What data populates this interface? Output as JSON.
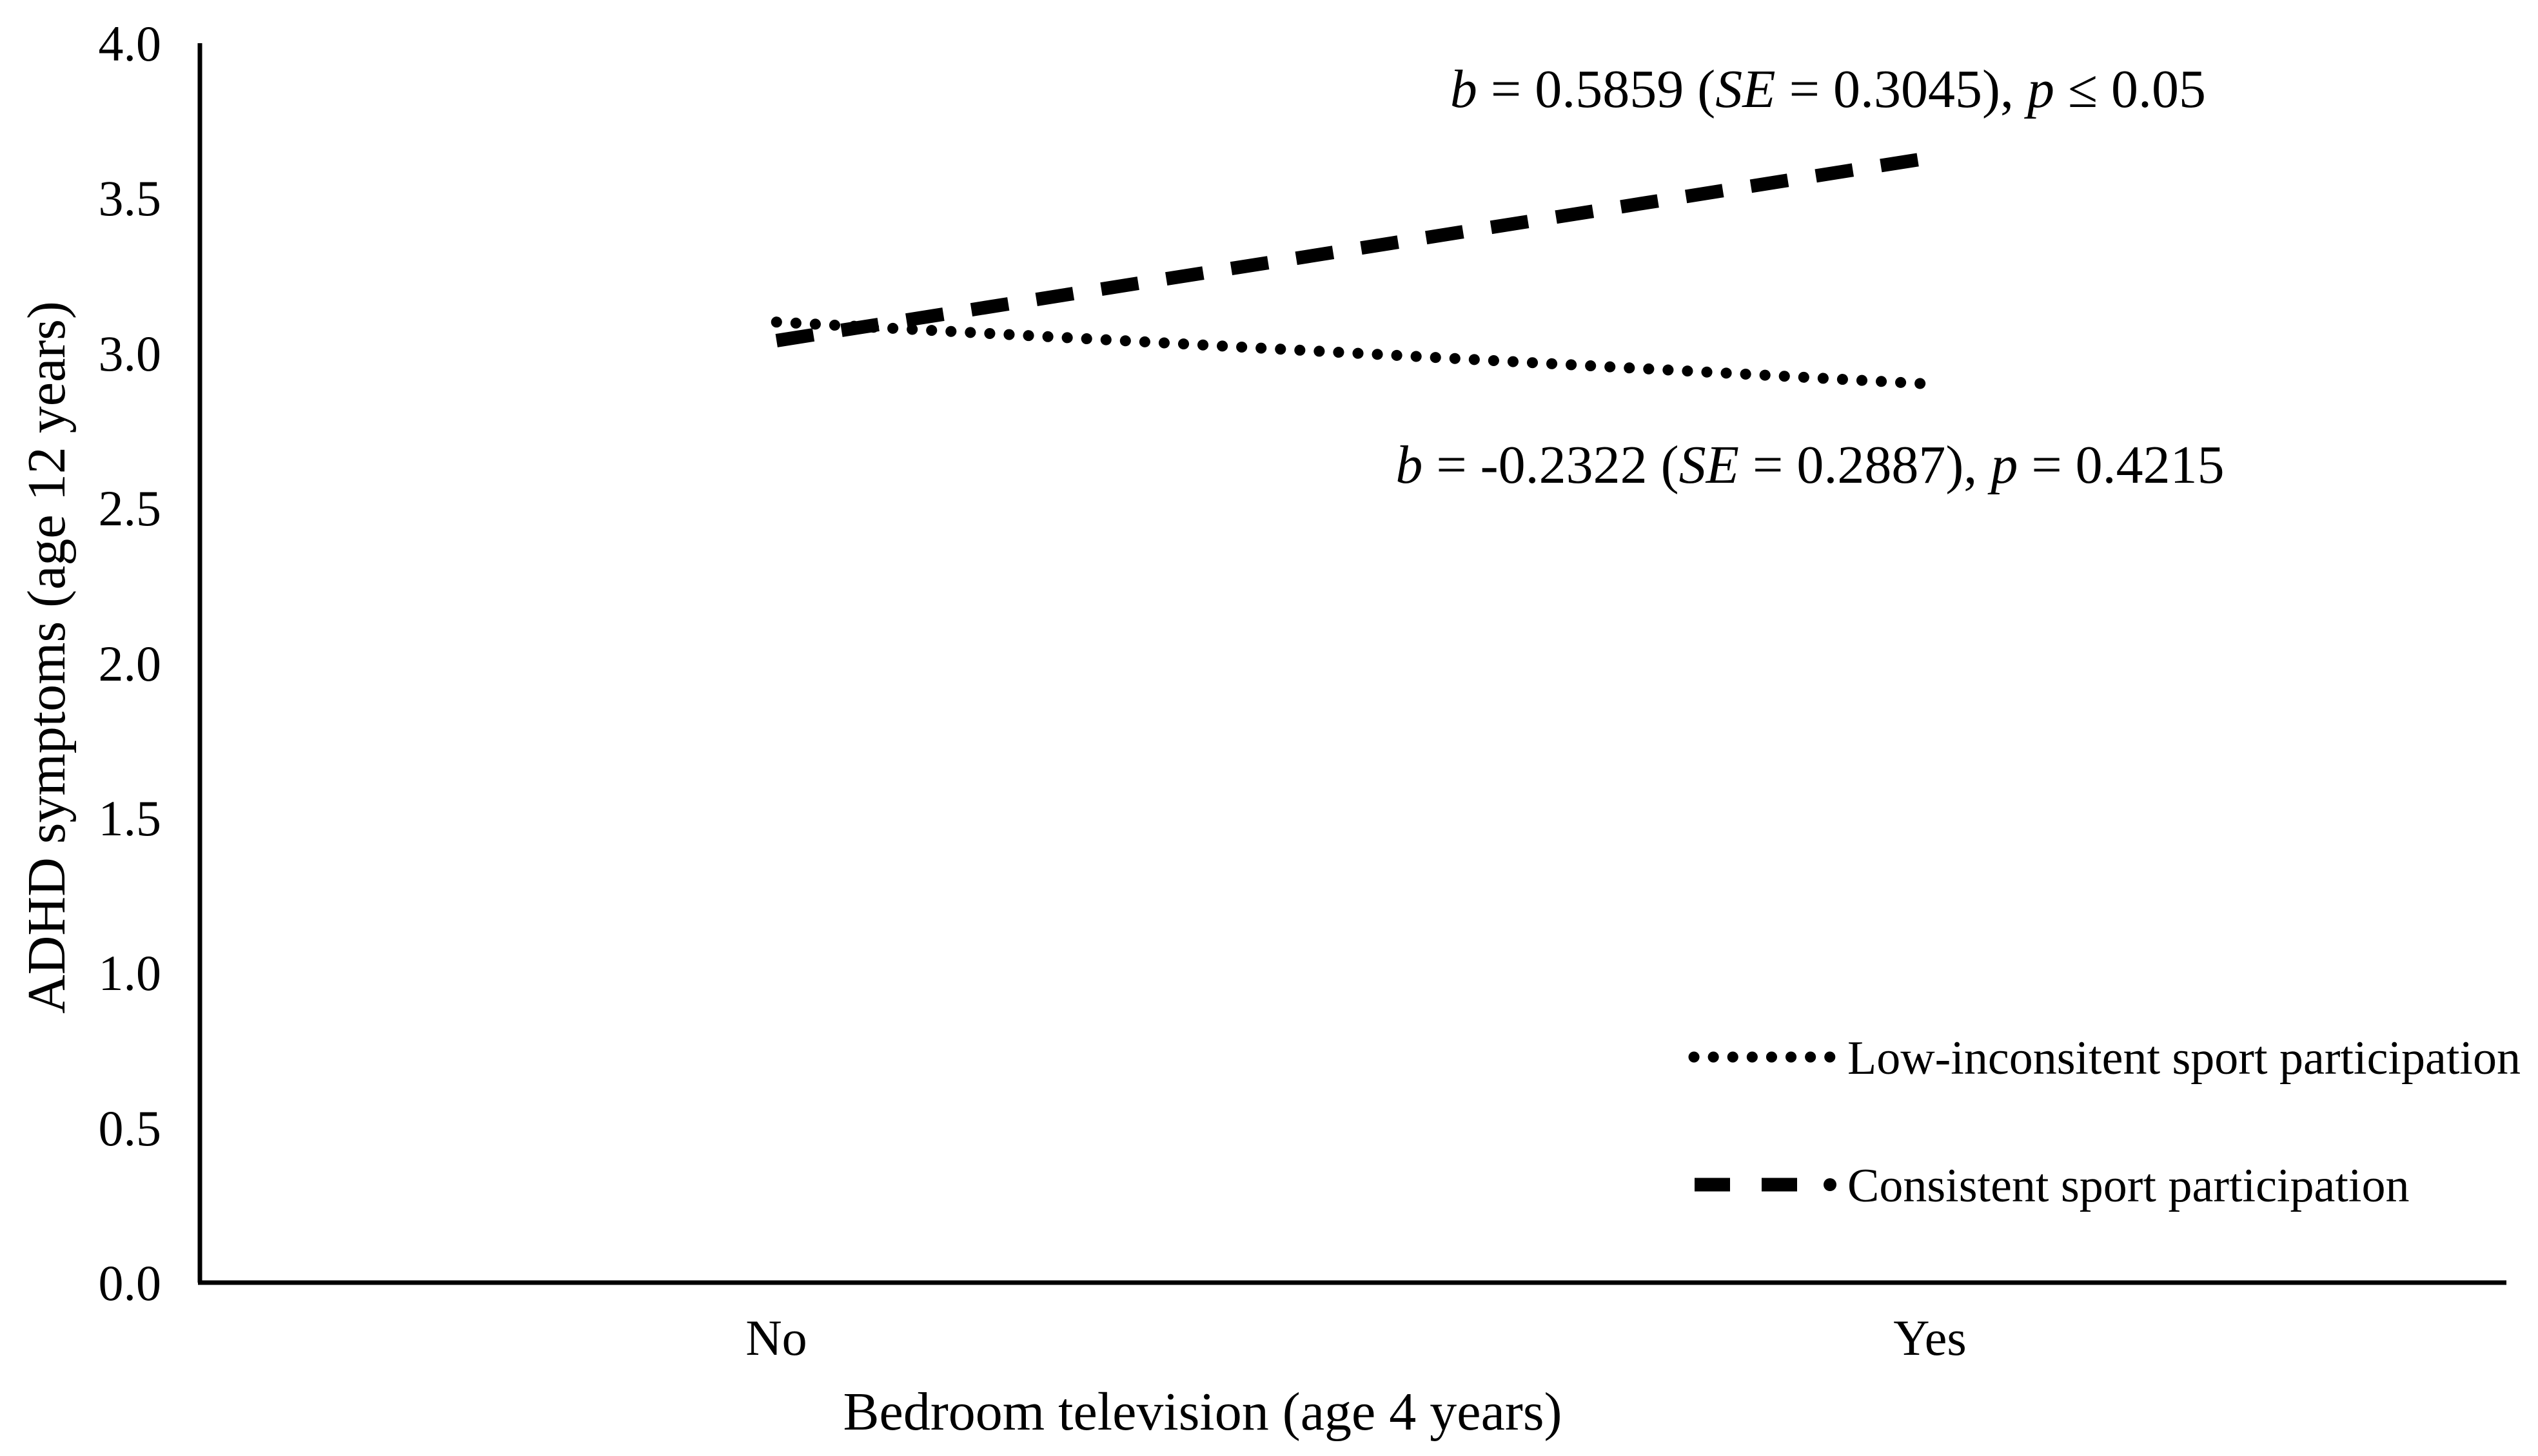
{
  "figure": {
    "background": "#ffffff",
    "ink_color": "#000000"
  },
  "chart_data": {
    "type": "line",
    "title": "",
    "xlabel": "Bedroom television (age 4 years)",
    "ylabel": "ADHD symptoms (age 12 years)",
    "categories": [
      "No",
      "Yes"
    ],
    "series": [
      {
        "name": "Low-inconsitent sport participation",
        "line_style": "dotted",
        "color": "#000000",
        "values": [
          3.1,
          2.9
        ],
        "annotation": "b = -0.2322 (SE = 0.2887), p = 0.4215"
      },
      {
        "name": "Consistent sport participation",
        "line_style": "dashed",
        "color": "#000000",
        "values": [
          3.04,
          3.63
        ],
        "annotation": "b = 0.5859 (SE = 0.3045), p ≤ 0.05"
      }
    ],
    "ylim": [
      0.0,
      4.0
    ],
    "ytick_step": 0.5,
    "yticks": [
      "4.0",
      "3.5",
      "3.0",
      "2.5",
      "2.0",
      "1.5",
      "1.0",
      "0.5",
      "0.0"
    ],
    "ytick_values": [
      4.0,
      3.5,
      3.0,
      2.5,
      2.0,
      1.5,
      1.0,
      0.5,
      0.0
    ],
    "grid": false,
    "legend_position": "inside-bottom-right"
  },
  "annotation_parts": {
    "consistent": {
      "b": "b",
      "eq1": " = 0.5859 (",
      "se": "SE",
      "eq2": " = 0.3045), ",
      "p": "p",
      "tail": " ≤  0.05"
    },
    "low_inconsistent": {
      "b": "b",
      "eq1": " = -0.2322 (",
      "se": "SE",
      "eq2": " = 0.2887), ",
      "p": "p",
      "tail": " = 0.4215"
    }
  }
}
